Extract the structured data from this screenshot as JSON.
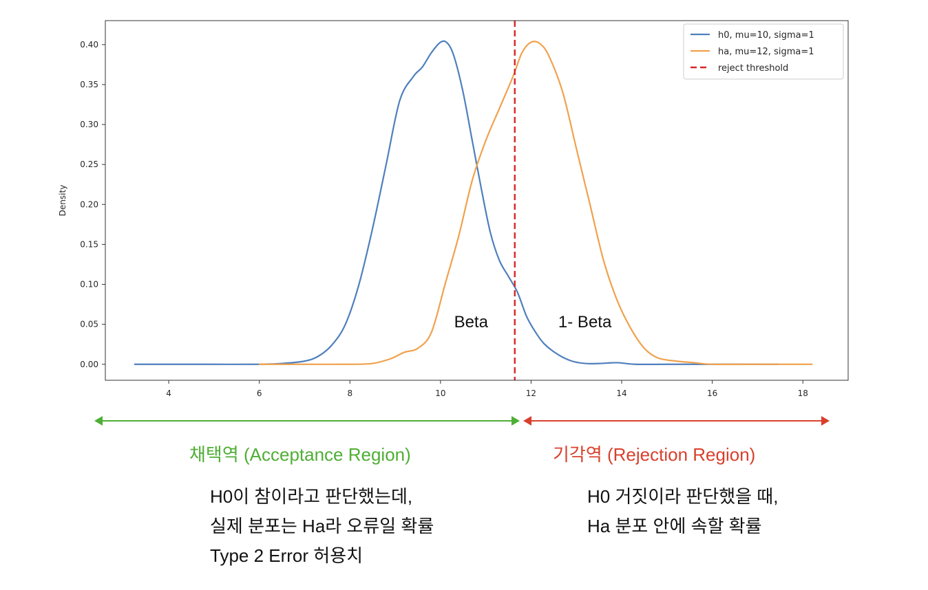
{
  "chart_data": {
    "type": "line",
    "title": "",
    "xlabel": "",
    "ylabel": "Density",
    "xlim": [
      2.6,
      19.0
    ],
    "ylim": [
      -0.02,
      0.43
    ],
    "xticks": [
      4,
      6,
      8,
      10,
      12,
      14,
      16,
      18
    ],
    "yticks": [
      0.0,
      0.05,
      0.1,
      0.15,
      0.2,
      0.25,
      0.3,
      0.35,
      0.4
    ],
    "ytick_labels": [
      "0.00",
      "0.05",
      "0.10",
      "0.15",
      "0.20",
      "0.25",
      "0.30",
      "0.35",
      "0.40"
    ],
    "grid": false,
    "legend_position": "top-right",
    "series": [
      {
        "name": "h0, mu=10, sigma=1",
        "color": "#4e7fbd",
        "x": [
          3.25,
          4.0,
          5.0,
          6.0,
          6.5,
          7.0,
          7.3,
          7.6,
          7.9,
          8.2,
          8.5,
          8.8,
          9.1,
          9.4,
          9.6,
          9.8,
          10.0,
          10.15,
          10.3,
          10.5,
          10.7,
          10.9,
          11.1,
          11.3,
          11.5,
          11.7,
          11.9,
          12.1,
          12.3,
          12.6,
          12.9,
          13.2,
          13.5,
          13.9,
          14.3,
          15.0,
          16.0,
          17.0,
          17.45
        ],
        "y": [
          0.0,
          0.0,
          0.0,
          0.0,
          0.001,
          0.004,
          0.01,
          0.024,
          0.05,
          0.1,
          0.17,
          0.25,
          0.33,
          0.36,
          0.372,
          0.39,
          0.403,
          0.402,
          0.385,
          0.34,
          0.28,
          0.22,
          0.165,
          0.13,
          0.11,
          0.09,
          0.06,
          0.04,
          0.025,
          0.012,
          0.004,
          0.001,
          0.001,
          0.002,
          0.0,
          0.0,
          0.0,
          0.0,
          0.0
        ]
      },
      {
        "name": "ha, mu=12, sigma=1",
        "color": "#f0a14d",
        "x": [
          6.0,
          7.0,
          8.0,
          8.5,
          8.9,
          9.2,
          9.5,
          9.8,
          10.1,
          10.4,
          10.7,
          11.0,
          11.3,
          11.6,
          11.8,
          12.0,
          12.2,
          12.4,
          12.7,
          13.0,
          13.3,
          13.6,
          13.9,
          14.2,
          14.5,
          14.8,
          15.2,
          15.6,
          16.0,
          17.0,
          18.2
        ],
        "y": [
          0.0,
          0.0,
          0.0,
          0.001,
          0.007,
          0.015,
          0.02,
          0.04,
          0.1,
          0.16,
          0.23,
          0.28,
          0.32,
          0.36,
          0.39,
          0.403,
          0.401,
          0.385,
          0.34,
          0.27,
          0.2,
          0.13,
          0.08,
          0.045,
          0.02,
          0.008,
          0.004,
          0.002,
          0.0,
          0.0,
          0.0
        ]
      },
      {
        "name": "reject threshold",
        "color": "#d62728",
        "style": "dashed",
        "x_value": 11.64
      }
    ],
    "annotations": [
      {
        "text": "Beta",
        "x": 11.05,
        "y": 0.053
      },
      {
        "text": "1- Beta",
        "x": 12.6,
        "y": 0.053
      }
    ]
  },
  "regions": {
    "acceptance_label": "채택역 (Acceptance Region)",
    "rejection_label": "기각역 (Rejection Region)",
    "acceptance_color": "#4fae35",
    "rejection_color": "#d8402c"
  },
  "notes": {
    "left": [
      "H0이 참이라고 판단했는데,",
      "실제 분포는 Ha라 오류일 확률",
      "Type 2 Error 허용치"
    ],
    "right": [
      "H0 거짓이라 판단했을 때,",
      "Ha 분포 안에 속할 확률"
    ]
  }
}
